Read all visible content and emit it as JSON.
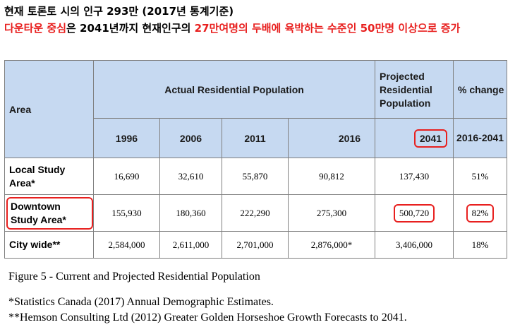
{
  "heading": {
    "line1": "현재 토론토 시의 인구 293만 (2017년 통계기준)",
    "line2_part1": "다운타운 중심",
    "line2_part2": "은 2041년까지 현재인구의 ",
    "line2_part3": "27만여명의 두배에 육박하는 수준인 50만명 이상으로 증가"
  },
  "table": {
    "area_header": "Area",
    "actual_header": "Actual Residential Population",
    "projected_header": "Projected Residential Population",
    "change_header": "% change",
    "years": [
      "1996",
      "2006",
      "2011",
      "2016"
    ],
    "projected_year": "2041",
    "change_period": "2016-2041",
    "rows": [
      {
        "label": "Local Study Area*",
        "values": [
          "16,690",
          "32,610",
          "55,870",
          "90,812"
        ],
        "projected": "137,430",
        "change": "51%"
      },
      {
        "label": "Downtown Study Area*",
        "values": [
          "155,930",
          "180,360",
          "222,290",
          "275,300"
        ],
        "projected": "500,720",
        "change": "82%"
      },
      {
        "label": "City wide**",
        "values": [
          "2,584,000",
          "2,611,000",
          "2,701,000",
          "2,876,000*"
        ],
        "projected": "3,406,000",
        "change": "18%"
      }
    ]
  },
  "caption": "Figure 5 - Current and Projected Residential Population",
  "footnotes": [
    "*Statistics Canada (2017) Annual Demographic Estimates.",
    "**Hemson Consulting Ltd (2012) Greater Golden Horseshoe Growth Forecasts to 2041."
  ],
  "colors": {
    "highlight_red": "#e8201f",
    "header_blue": "#c6d9f1",
    "border_gray": "#7f7f7f"
  }
}
